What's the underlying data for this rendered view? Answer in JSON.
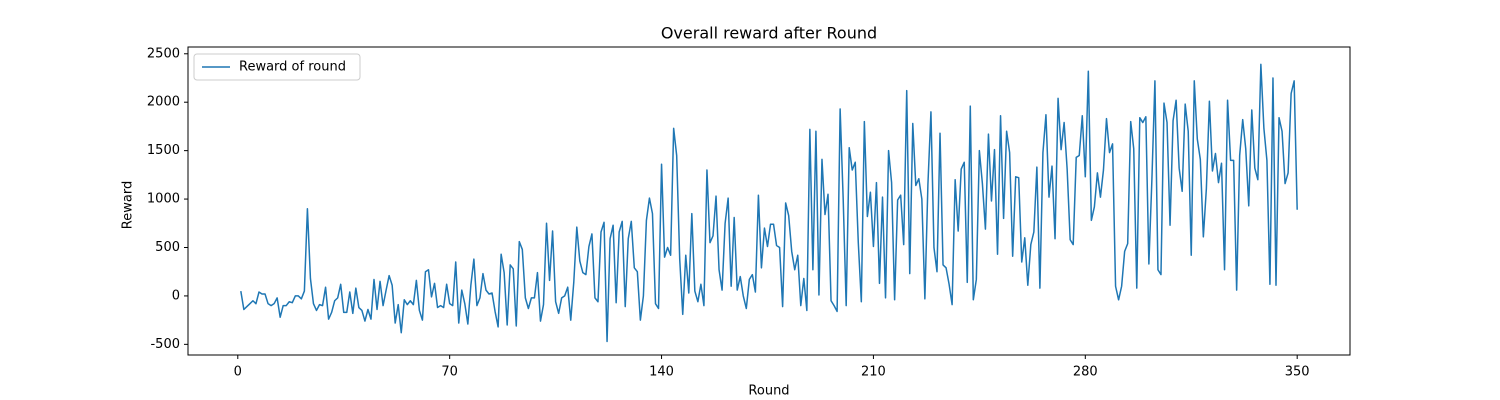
{
  "chart_data": {
    "type": "line",
    "title": "Overall reward after Round",
    "x_label": "Round",
    "y_label": "Reward",
    "x": [
      1,
      2,
      3,
      4,
      5,
      6,
      7,
      8,
      9,
      10,
      11,
      12,
      13,
      14,
      15,
      16,
      17,
      18,
      19,
      20,
      21,
      22,
      23,
      24,
      25,
      26,
      27,
      28,
      29,
      30,
      31,
      32,
      33,
      34,
      35,
      36,
      37,
      38,
      39,
      40,
      41,
      42,
      43,
      44,
      45,
      46,
      47,
      48,
      49,
      50,
      51,
      52,
      53,
      54,
      55,
      56,
      57,
      58,
      59,
      60,
      61,
      62,
      63,
      64,
      65,
      66,
      67,
      68,
      69,
      70,
      71,
      72,
      73,
      74,
      75,
      76,
      77,
      78,
      79,
      80,
      81,
      82,
      83,
      84,
      85,
      86,
      87,
      88,
      89,
      90,
      91,
      92,
      93,
      94,
      95,
      96,
      97,
      98,
      99,
      100,
      101,
      102,
      103,
      104,
      105,
      106,
      107,
      108,
      109,
      110,
      111,
      112,
      113,
      114,
      115,
      116,
      117,
      118,
      119,
      120,
      121,
      122,
      123,
      124,
      125,
      126,
      127,
      128,
      129,
      130,
      131,
      132,
      133,
      134,
      135,
      136,
      137,
      138,
      139,
      140,
      141,
      142,
      143,
      144,
      145,
      146,
      147,
      148,
      149,
      150,
      151,
      152,
      153,
      154,
      155,
      156,
      157,
      158,
      159,
      160,
      161,
      162,
      163,
      164,
      165,
      166,
      167,
      168,
      169,
      170,
      171,
      172,
      173,
      174,
      175,
      176,
      177,
      178,
      179,
      180,
      181,
      182,
      183,
      184,
      185,
      186,
      187,
      188,
      189,
      190,
      191,
      192,
      193,
      194,
      195,
      196,
      197,
      198,
      199,
      200,
      201,
      202,
      203,
      204,
      205,
      206,
      207,
      208,
      209,
      210,
      211,
      212,
      213,
      214,
      215,
      216,
      217,
      218,
      219,
      220,
      221,
      222,
      223,
      224,
      225,
      226,
      227,
      228,
      229,
      230,
      231,
      232,
      233,
      234,
      235,
      236,
      237,
      238,
      239,
      240,
      241,
      242,
      243,
      244,
      245,
      246,
      247,
      248,
      249,
      250,
      251,
      252,
      253,
      254,
      255,
      256,
      257,
      258,
      259,
      260,
      261,
      262,
      263,
      264,
      265,
      266,
      267,
      268,
      269,
      270,
      271,
      272,
      273,
      274,
      275,
      276,
      277,
      278,
      279,
      280,
      281,
      282,
      283,
      284,
      285,
      286,
      287,
      288,
      289,
      290,
      291,
      292,
      293,
      294,
      295,
      296,
      297,
      298,
      299,
      300,
      301,
      302,
      303,
      304,
      305,
      306,
      307,
      308,
      309,
      310,
      311,
      312,
      313,
      314,
      315,
      316,
      317,
      318,
      319,
      320,
      321,
      322,
      323,
      324,
      325,
      326,
      327,
      328,
      329,
      330,
      331,
      332,
      333,
      334,
      335,
      336,
      337,
      338,
      339,
      340,
      341,
      342,
      343,
      344,
      345,
      346,
      347,
      348,
      349,
      350
    ],
    "series": [
      {
        "name": "Reward of round",
        "color": "#1f77b4",
        "values": [
          50,
          -140,
          -110,
          -80,
          -50,
          -80,
          40,
          20,
          20,
          -80,
          -100,
          -80,
          -20,
          -220,
          -100,
          -100,
          -60,
          -70,
          0,
          0,
          -30,
          50,
          900,
          180,
          -80,
          -150,
          -90,
          -100,
          90,
          -240,
          -170,
          -50,
          -20,
          120,
          -170,
          -170,
          40,
          -180,
          80,
          -120,
          -150,
          -260,
          -140,
          -240,
          170,
          -140,
          150,
          -100,
          60,
          210,
          110,
          -280,
          -90,
          -380,
          -40,
          -90,
          -50,
          -90,
          160,
          -150,
          -250,
          250,
          270,
          -10,
          130,
          -120,
          -100,
          -120,
          120,
          -80,
          -100,
          350,
          -280,
          60,
          -80,
          -290,
          110,
          380,
          -100,
          -20,
          230,
          60,
          20,
          30,
          -160,
          -320,
          430,
          240,
          -300,
          320,
          280,
          -310,
          560,
          480,
          -20,
          -130,
          -20,
          -20,
          240,
          -260,
          -90,
          750,
          160,
          670,
          -60,
          -180,
          -20,
          0,
          90,
          -250,
          140,
          710,
          360,
          240,
          220,
          510,
          640,
          -20,
          -60,
          660,
          760,
          -470,
          590,
          730,
          -70,
          660,
          770,
          -110,
          590,
          770,
          290,
          250,
          -250,
          0,
          780,
          1010,
          850,
          -80,
          -130,
          1360,
          400,
          500,
          420,
          1730,
          1450,
          380,
          -190,
          420,
          30,
          850,
          50,
          -60,
          120,
          -100,
          1300,
          550,
          620,
          1030,
          270,
          60,
          750,
          1010,
          100,
          810,
          60,
          200,
          0,
          -130,
          170,
          220,
          40,
          1040,
          290,
          700,
          510,
          740,
          740,
          520,
          500,
          -110,
          960,
          830,
          460,
          270,
          420,
          -100,
          180,
          -150,
          1720,
          270,
          1700,
          10,
          1410,
          840,
          1050,
          -50,
          -100,
          -160,
          1930,
          1010,
          -100,
          1530,
          1300,
          1380,
          550,
          -60,
          1800,
          820,
          1070,
          510,
          1170,
          130,
          1020,
          -20,
          1500,
          1170,
          -40,
          990,
          1040,
          530,
          2120,
          230,
          1780,
          1140,
          1210,
          1000,
          -30,
          1150,
          1900,
          500,
          250,
          1680,
          320,
          290,
          120,
          -90,
          1200,
          670,
          1310,
          1380,
          140,
          1960,
          -40,
          170,
          1500,
          1160,
          690,
          1670,
          980,
          1510,
          430,
          1860,
          800,
          1700,
          1480,
          410,
          1230,
          1220,
          350,
          600,
          110,
          530,
          660,
          1330,
          80,
          1480,
          1870,
          1020,
          1340,
          590,
          2040,
          1510,
          1790,
          1310,
          580,
          530,
          1430,
          1450,
          1860,
          1230,
          2320,
          780,
          920,
          1270,
          1020,
          1300,
          1830,
          1480,
          1570,
          100,
          -40,
          100,
          460,
          540,
          1800,
          1520,
          80,
          1840,
          1790,
          1850,
          330,
          1200,
          2220,
          270,
          220,
          1990,
          1790,
          730,
          1810,
          2020,
          1320,
          1080,
          1980,
          1700,
          420,
          2220,
          1620,
          1410,
          610,
          1110,
          2010,
          1290,
          1470,
          1170,
          1370,
          270,
          2020,
          1400,
          1400,
          60,
          1450,
          1820,
          1520,
          930,
          1920,
          1320,
          1200,
          2390,
          1730,
          1400,
          120,
          2250,
          110,
          1840,
          1700,
          1160,
          1270,
          2090,
          2220,
          890
        ]
      }
    ],
    "xlim": [
      -16.45,
      367.45
    ],
    "ylim": [
      -610,
      2570
    ],
    "xticks": [
      0,
      70,
      140,
      210,
      280,
      350
    ],
    "yticks": [
      -500,
      0,
      500,
      1000,
      1500,
      2000,
      2500
    ],
    "legend": "upper left"
  }
}
